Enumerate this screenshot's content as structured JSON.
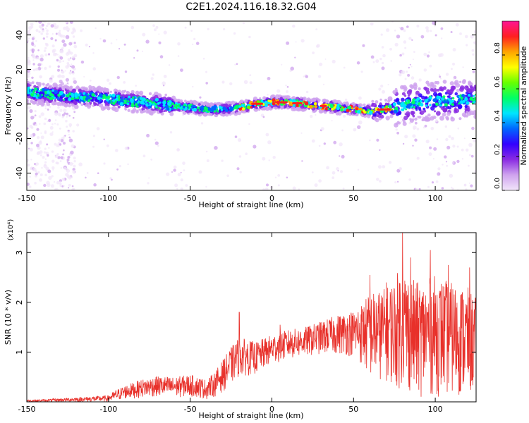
{
  "title": "C2E1.2024.116.18.32.G04",
  "chart_data": [
    {
      "type": "heatmap",
      "xlabel": "Height of straight line (km)",
      "ylabel": "Frequency (Hz)",
      "xlim": [
        -150,
        125
      ],
      "ylim": [
        -50,
        48
      ],
      "xticks": [
        "-150",
        "-100",
        "-50",
        "0",
        "50",
        "100"
      ],
      "yticks": [
        "-40",
        "-20",
        "0",
        "20",
        "40"
      ],
      "colorbar": {
        "label": "Normalized spectral amplitude",
        "range": [
          0,
          1
        ],
        "ticks": [
          "0.0",
          "0.2",
          "0.4",
          "0.6",
          "0.8"
        ],
        "colors": [
          "#f2e6fa",
          "#cfa3ee",
          "#8a2be2",
          "#3300ff",
          "#0066ff",
          "#00e5ff",
          "#00ff66",
          "#66ff00",
          "#ffff00",
          "#ffa500",
          "#ff2020",
          "#ff1493"
        ]
      },
      "ridge": {
        "x": [
          -150,
          -140,
          -130,
          -120,
          -110,
          -100,
          -90,
          -80,
          -70,
          -60,
          -50,
          -40,
          -30,
          -20,
          -10,
          0,
          10,
          20,
          30,
          40,
          50,
          60,
          70,
          80,
          90,
          100,
          110,
          120,
          125
        ],
        "y": [
          7,
          6,
          5,
          4,
          4,
          3,
          2,
          1,
          0,
          -1,
          -2,
          -3,
          -3,
          -2,
          0,
          1,
          1,
          0,
          -1,
          -2,
          -3,
          -4,
          -3,
          -1,
          1,
          2,
          2,
          3,
          3
        ]
      }
    },
    {
      "type": "line",
      "xlabel": "Height of straight line (km)",
      "ylabel": "SNR (10 * v/v)",
      "y_multiplier": "(x10⁴)",
      "xlim": [
        -150,
        125
      ],
      "ylim": [
        0,
        3.4
      ],
      "xticks": [
        "-150",
        "-100",
        "-50",
        "0",
        "50",
        "100"
      ],
      "yticks": [
        "1",
        "2",
        "3"
      ],
      "series": [
        {
          "color": "#e8302a",
          "envelope": {
            "x": [
              -150,
              -140,
              -120,
              -100,
              -95,
              -90,
              -80,
              -70,
              -60,
              -50,
              -40,
              -35,
              -30,
              -25,
              -20,
              -10,
              0,
              10,
              20,
              30,
              40,
              50,
              55,
              60,
              70,
              75,
              80,
              85,
              90,
              100,
              110,
              120,
              125
            ],
            "upper": [
              0.04,
              0.05,
              0.09,
              0.13,
              0.25,
              0.33,
              0.45,
              0.52,
              0.5,
              0.55,
              0.45,
              0.6,
              0.85,
              1.1,
              1.3,
              1.2,
              1.35,
              1.45,
              1.5,
              1.62,
              1.75,
              1.85,
              2.0,
              2.2,
              2.3,
              2.5,
              2.8,
              2.5,
              2.4,
              2.55,
              2.4,
              2.3,
              2.1
            ],
            "lower": [
              0.0,
              0.0,
              0.0,
              0.0,
              0.02,
              0.05,
              0.08,
              0.1,
              0.08,
              0.1,
              0.05,
              0.1,
              0.2,
              0.35,
              0.5,
              0.55,
              0.75,
              0.85,
              0.9,
              0.95,
              0.95,
              0.9,
              0.7,
              0.45,
              0.4,
              0.3,
              0.2,
              0.15,
              0.1,
              0.1,
              0.1,
              0.1,
              0.15
            ]
          },
          "peaks": [
            {
              "x": -20,
              "y": 1.8
            },
            {
              "x": 5,
              "y": 1.55
            },
            {
              "x": 60,
              "y": 2.55
            },
            {
              "x": 70,
              "y": 2.4
            },
            {
              "x": 80,
              "y": 3.4
            },
            {
              "x": 85,
              "y": 2.9
            },
            {
              "x": 97,
              "y": 3.05
            },
            {
              "x": 108,
              "y": 2.75
            },
            {
              "x": 121,
              "y": 2.7
            }
          ]
        }
      ]
    }
  ]
}
